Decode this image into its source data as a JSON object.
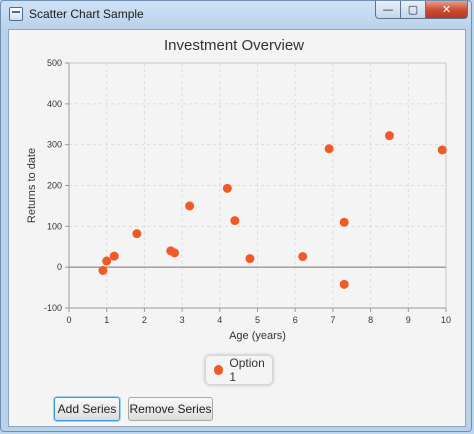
{
  "window": {
    "title": "Scatter Chart Sample",
    "controls": {
      "minimize": "—",
      "maximize": "▢",
      "close": "✕"
    }
  },
  "chart_data": {
    "type": "scatter",
    "title": "Investment Overview",
    "xlabel": "Age (years)",
    "ylabel": "Returns to date",
    "xlim": [
      0,
      10
    ],
    "ylim": [
      -100,
      500
    ],
    "x_ticks": [
      0,
      1,
      2,
      3,
      4,
      5,
      6,
      7,
      8,
      9,
      10
    ],
    "y_ticks": [
      -100,
      0,
      100,
      200,
      300,
      400,
      500
    ],
    "grid": true,
    "legend": "bottom-center",
    "series": [
      {
        "name": "Option 1",
        "color": "#f05a26",
        "x": [
          0.9,
          1.0,
          1.2,
          1.8,
          2.7,
          2.8,
          3.2,
          4.2,
          4.4,
          4.8,
          6.2,
          6.9,
          7.3,
          7.3,
          8.5,
          9.9
        ],
        "y": [
          -8,
          15,
          27,
          82,
          40,
          35,
          150,
          193,
          114,
          21,
          26,
          290,
          110,
          -42,
          322,
          287
        ]
      }
    ]
  },
  "legend": {
    "items": [
      {
        "label": "Option 1"
      }
    ]
  },
  "buttons": {
    "add": "Add Series",
    "remove": "Remove Series"
  }
}
